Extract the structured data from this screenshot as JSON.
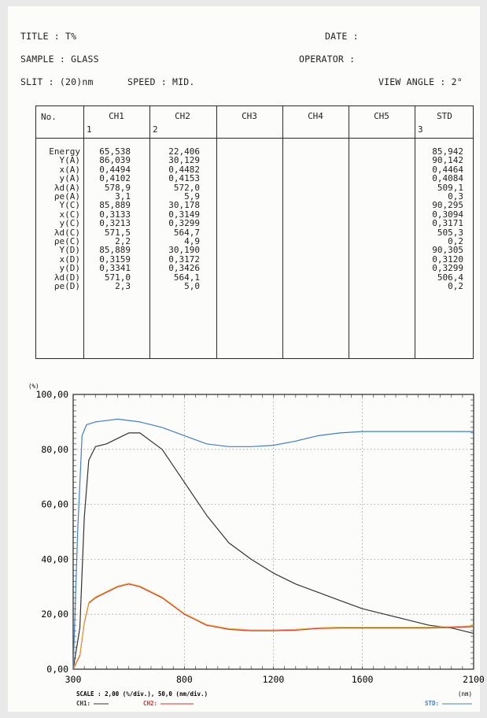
{
  "header": {
    "title_label": "TITLE  :  T%",
    "date_label": "DATE :",
    "sample_label": "SAMPLE : GLASS",
    "operator_label": "OPERATOR :",
    "slit_label": "SLIT : (20)nm",
    "speed_label": "SPEED : MID.",
    "view_angle_label": "VIEW ANGLE : 2°"
  },
  "table": {
    "no_label": "No.",
    "columns": [
      "CH1",
      "CH2",
      "CH3",
      "CH4",
      "CH5",
      "STD"
    ],
    "column_indices": [
      "1",
      "2",
      "",
      "",
      "",
      "3"
    ],
    "row_labels": [
      "Energy",
      "Y(A)",
      "x(A)",
      "y(A)",
      "λd(A)",
      "ρe(A)",
      "Y(C)",
      "x(C)",
      "y(C)",
      "λd(C)",
      "ρe(C)",
      "Y(D)",
      "x(D)",
      "y(D)",
      "λd(D)",
      "ρe(D)"
    ],
    "ch1": [
      "65,538",
      "86,039",
      "0,4494",
      "0,4102",
      "578,9",
      "3,1",
      "85,889",
      "0,3133",
      "0,3213",
      "571,5",
      "2,2",
      "85,889",
      "0,3159",
      "0,3341",
      "571,0",
      "2,3"
    ],
    "ch2": [
      "22,406",
      "30,129",
      "0,4482",
      "0,4153",
      "572,0",
      "5,9",
      "30,178",
      "0,3149",
      "0,3299",
      "564,7",
      "4,9",
      "30,190",
      "0,3172",
      "0,3426",
      "564,1",
      "5,0"
    ],
    "std": [
      "85,942",
      "90,142",
      "0,4464",
      "0,4084",
      "509,1",
      "0,3",
      "90,295",
      "0,3094",
      "0,3171",
      "505,3",
      "0,2",
      "90,305",
      "0,3120",
      "0,3299",
      "506,4",
      "0,2"
    ]
  },
  "chart_data": {
    "type": "line",
    "ylabel": "(%)",
    "xlabel": "(nm)",
    "xlim": [
      300,
      2100
    ],
    "ylim": [
      0,
      100
    ],
    "x_ticks": [
      "300",
      "800",
      "1200",
      "1600",
      "2100"
    ],
    "y_ticks": [
      "0,00",
      "20,00",
      "40,00",
      "60,00",
      "80,00",
      "100,00"
    ],
    "grid": true,
    "scale_text": "SCALE : 2,00 (%/div.),   50,0 (nm/div.)",
    "legend_placement": "bottom",
    "series": [
      {
        "name": "CH1:",
        "color": "#333333",
        "x": [
          300,
          330,
          350,
          370,
          400,
          450,
          500,
          550,
          600,
          700,
          800,
          900,
          1000,
          1100,
          1200,
          1300,
          1400,
          1500,
          1600,
          1700,
          1800,
          1900,
          2000,
          2100
        ],
        "y": [
          0,
          15,
          55,
          76,
          81,
          82,
          84,
          86,
          86,
          80,
          68,
          56,
          46,
          40,
          35,
          31,
          28,
          25,
          22,
          20,
          18,
          16,
          15,
          13
        ]
      },
      {
        "name": "CH2:",
        "color": "#e03020",
        "x": [
          300,
          330,
          350,
          370,
          400,
          450,
          500,
          550,
          600,
          700,
          800,
          900,
          1000,
          1100,
          1200,
          1300,
          1400,
          1500,
          1600,
          1700,
          1800,
          1900,
          2000,
          2100
        ],
        "y": [
          0,
          5,
          17,
          24,
          26,
          28,
          30,
          31,
          30,
          26,
          20,
          16,
          14.5,
          14,
          14,
          14.2,
          14.8,
          15,
          15,
          15,
          15,
          15,
          15.2,
          15.5
        ]
      },
      {
        "name": "STD:",
        "color": "#3f7fd0",
        "x": [
          300,
          320,
          340,
          360,
          400,
          500,
          600,
          700,
          800,
          900,
          1000,
          1100,
          1200,
          1300,
          1400,
          1500,
          1600,
          1700,
          1800,
          1900,
          2000,
          2100
        ],
        "y": [
          0,
          50,
          85,
          89,
          90,
          91,
          90,
          88,
          85,
          82,
          81,
          81,
          81.5,
          83,
          85,
          86,
          86.5,
          86.5,
          86.5,
          86.5,
          86.5,
          86.5
        ]
      }
    ]
  }
}
